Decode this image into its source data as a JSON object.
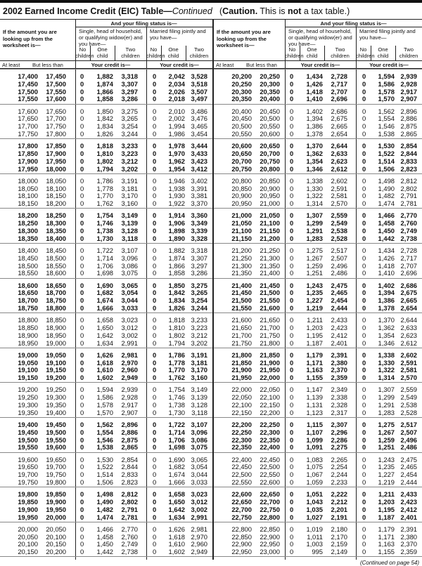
{
  "title": {
    "main": "2002 Earned Income Credit (EIC) Table—",
    "cont": "Continued",
    "caution_bold": "Caution.",
    "caution_mid": " This is ",
    "caution_not": "not",
    "caution_end": " a tax table.)",
    "caution_open": "("
  },
  "header": {
    "filing_status": "And your filing status is—",
    "lookup": [
      "If the amount you are",
      "looking up from the",
      "worksheet is—"
    ],
    "single": [
      "Single, head of household,",
      "or qualifying widow(er) and",
      "you have—"
    ],
    "married": [
      "Married filing jointly and",
      "you have—"
    ],
    "no_children": [
      "No",
      "children"
    ],
    "one_child": [
      "One",
      "child"
    ],
    "two_children": [
      "Two",
      "children"
    ],
    "at_least": "At least",
    "but_less_than": "But less than",
    "your_credit": "Your credit is—"
  },
  "left": {
    "rows": [
      [
        "17,400",
        "17,450",
        "0",
        "1,882",
        "3,318",
        "0",
        "2,042",
        "3,528"
      ],
      [
        "17,450",
        "17,500",
        "0",
        "1,874",
        "3,307",
        "0",
        "2,034",
        "3,518"
      ],
      [
        "17,500",
        "17,550",
        "0",
        "1,866",
        "3,297",
        "0",
        "2,026",
        "3,507"
      ],
      [
        "17,550",
        "17,600",
        "0",
        "1,858",
        "3,286",
        "0",
        "2,018",
        "3,497"
      ],
      [
        "17,600",
        "17,650",
        "0",
        "1,850",
        "3,275",
        "0",
        "2,010",
        "3,486"
      ],
      [
        "17,650",
        "17,700",
        "0",
        "1,842",
        "3,265",
        "0",
        "2,002",
        "3,476"
      ],
      [
        "17,700",
        "17,750",
        "0",
        "1,834",
        "3,254",
        "0",
        "1,994",
        "3,465"
      ],
      [
        "17,750",
        "17,800",
        "0",
        "1,826",
        "3,244",
        "0",
        "1,986",
        "3,454"
      ],
      [
        "17,800",
        "17,850",
        "0",
        "1,818",
        "3,233",
        "0",
        "1,978",
        "3,444"
      ],
      [
        "17,850",
        "17,900",
        "0",
        "1,810",
        "3,223",
        "0",
        "1,970",
        "3,433"
      ],
      [
        "17,900",
        "17,950",
        "0",
        "1,802",
        "3,212",
        "0",
        "1,962",
        "3,423"
      ],
      [
        "17,950",
        "18,000",
        "0",
        "1,794",
        "3,202",
        "0",
        "1,954",
        "3,412"
      ],
      [
        "18,000",
        "18,050",
        "0",
        "1,786",
        "3,191",
        "0",
        "1,946",
        "3,402"
      ],
      [
        "18,050",
        "18,100",
        "0",
        "1,778",
        "3,181",
        "0",
        "1,938",
        "3,391"
      ],
      [
        "18,100",
        "18,150",
        "0",
        "1,770",
        "3,170",
        "0",
        "1,930",
        "3,381"
      ],
      [
        "18,150",
        "18,200",
        "0",
        "1,762",
        "3,160",
        "0",
        "1,922",
        "3,370"
      ],
      [
        "18,200",
        "18,250",
        "0",
        "1,754",
        "3,149",
        "0",
        "1,914",
        "3,360"
      ],
      [
        "18,250",
        "18,300",
        "0",
        "1,746",
        "3,139",
        "0",
        "1,906",
        "3,349"
      ],
      [
        "18,300",
        "18,350",
        "0",
        "1,738",
        "3,128",
        "0",
        "1,898",
        "3,339"
      ],
      [
        "18,350",
        "18,400",
        "0",
        "1,730",
        "3,118",
        "0",
        "1,890",
        "3,328"
      ],
      [
        "18,400",
        "18,450",
        "0",
        "1,722",
        "3,107",
        "0",
        "1,882",
        "3,318"
      ],
      [
        "18,450",
        "18,500",
        "0",
        "1,714",
        "3,096",
        "0",
        "1,874",
        "3,307"
      ],
      [
        "18,500",
        "18,550",
        "0",
        "1,706",
        "3,086",
        "0",
        "1,866",
        "3,297"
      ],
      [
        "18,550",
        "18,600",
        "0",
        "1,698",
        "3,075",
        "0",
        "1,858",
        "3,286"
      ],
      [
        "18,600",
        "18,650",
        "0",
        "1,690",
        "3,065",
        "0",
        "1,850",
        "3,275"
      ],
      [
        "18,650",
        "18,700",
        "0",
        "1,682",
        "3,054",
        "0",
        "1,842",
        "3,265"
      ],
      [
        "18,700",
        "18,750",
        "0",
        "1,674",
        "3,044",
        "0",
        "1,834",
        "3,254"
      ],
      [
        "18,750",
        "18,800",
        "0",
        "1,666",
        "3,033",
        "0",
        "1,826",
        "3,244"
      ],
      [
        "18,800",
        "18,850",
        "0",
        "1,658",
        "3,023",
        "0",
        "1,818",
        "3,233"
      ],
      [
        "18,850",
        "18,900",
        "0",
        "1,650",
        "3,012",
        "0",
        "1,810",
        "3,223"
      ],
      [
        "18,900",
        "18,950",
        "0",
        "1,642",
        "3,002",
        "0",
        "1,802",
        "3,212"
      ],
      [
        "18,950",
        "19,000",
        "0",
        "1,634",
        "2,991",
        "0",
        "1,794",
        "3,202"
      ],
      [
        "19,000",
        "19,050",
        "0",
        "1,626",
        "2,981",
        "0",
        "1,786",
        "3,191"
      ],
      [
        "19,050",
        "19,100",
        "0",
        "1,618",
        "2,970",
        "0",
        "1,778",
        "3,181"
      ],
      [
        "19,100",
        "19,150",
        "0",
        "1,610",
        "2,960",
        "0",
        "1,770",
        "3,170"
      ],
      [
        "19,150",
        "19,200",
        "0",
        "1,602",
        "2,949",
        "0",
        "1,762",
        "3,160"
      ],
      [
        "19,200",
        "19,250",
        "0",
        "1,594",
        "2,939",
        "0",
        "1,754",
        "3,149"
      ],
      [
        "19,250",
        "19,300",
        "0",
        "1,586",
        "2,928",
        "0",
        "1,746",
        "3,139"
      ],
      [
        "19,300",
        "19,350",
        "0",
        "1,578",
        "2,917",
        "0",
        "1,738",
        "3,128"
      ],
      [
        "19,350",
        "19,400",
        "0",
        "1,570",
        "2,907",
        "0",
        "1,730",
        "3,118"
      ],
      [
        "19,400",
        "19,450",
        "0",
        "1,562",
        "2,896",
        "0",
        "1,722",
        "3,107"
      ],
      [
        "19,450",
        "19,500",
        "0",
        "1,554",
        "2,886",
        "0",
        "1,714",
        "3,096"
      ],
      [
        "19,500",
        "19,550",
        "0",
        "1,546",
        "2,875",
        "0",
        "1,706",
        "3,086"
      ],
      [
        "19,550",
        "19,600",
        "0",
        "1,538",
        "2,865",
        "0",
        "1,698",
        "3,075"
      ],
      [
        "19,600",
        "19,650",
        "0",
        "1,530",
        "2,854",
        "0",
        "1,690",
        "3,065"
      ],
      [
        "19,650",
        "19,700",
        "0",
        "1,522",
        "2,844",
        "0",
        "1,682",
        "3,054"
      ],
      [
        "19,700",
        "19,750",
        "0",
        "1,514",
        "2,833",
        "0",
        "1,674",
        "3,044"
      ],
      [
        "19,750",
        "19,800",
        "0",
        "1,506",
        "2,823",
        "0",
        "1,666",
        "3,033"
      ],
      [
        "19,800",
        "19,850",
        "0",
        "1,498",
        "2,812",
        "0",
        "1,658",
        "3,023"
      ],
      [
        "19,850",
        "19,900",
        "0",
        "1,490",
        "2,802",
        "0",
        "1,650",
        "3,012"
      ],
      [
        "19,900",
        "19,950",
        "0",
        "1,482",
        "2,791",
        "0",
        "1,642",
        "3,002"
      ],
      [
        "19,950",
        "20,000",
        "0",
        "1,474",
        "2,781",
        "0",
        "1,634",
        "2,991"
      ],
      [
        "20,000",
        "20,050",
        "0",
        "1,466",
        "2,770",
        "0",
        "1,626",
        "2,981"
      ],
      [
        "20,050",
        "20,100",
        "0",
        "1,458",
        "2,760",
        "0",
        "1,618",
        "2,970"
      ],
      [
        "20,100",
        "20,150",
        "0",
        "1,450",
        "2,749",
        "0",
        "1,610",
        "2,960"
      ],
      [
        "20,150",
        "20,200",
        "0",
        "1,442",
        "2,738",
        "0",
        "1,602",
        "2,949"
      ]
    ]
  },
  "right": {
    "rows": [
      [
        "20,200",
        "20,250",
        "0",
        "1,434",
        "2,728",
        "0",
        "1,594",
        "2,939"
      ],
      [
        "20,250",
        "20,300",
        "0",
        "1,426",
        "2,717",
        "0",
        "1,586",
        "2,928"
      ],
      [
        "20,300",
        "20,350",
        "0",
        "1,418",
        "2,707",
        "0",
        "1,578",
        "2,917"
      ],
      [
        "20,350",
        "20,400",
        "0",
        "1,410",
        "2,696",
        "0",
        "1,570",
        "2,907"
      ],
      [
        "20,400",
        "20,450",
        "0",
        "1,402",
        "2,686",
        "0",
        "1,562",
        "2,896"
      ],
      [
        "20,450",
        "20,500",
        "0",
        "1,394",
        "2,675",
        "0",
        "1,554",
        "2,886"
      ],
      [
        "20,500",
        "20,550",
        "0",
        "1,386",
        "2,665",
        "0",
        "1,546",
        "2,875"
      ],
      [
        "20,550",
        "20,600",
        "0",
        "1,378",
        "2,654",
        "0",
        "1,538",
        "2,865"
      ],
      [
        "20,600",
        "20,650",
        "0",
        "1,370",
        "2,644",
        "0",
        "1,530",
        "2,854"
      ],
      [
        "20,650",
        "20,700",
        "0",
        "1,362",
        "2,633",
        "0",
        "1,522",
        "2,844"
      ],
      [
        "20,700",
        "20,750",
        "0",
        "1,354",
        "2,623",
        "0",
        "1,514",
        "2,833"
      ],
      [
        "20,750",
        "20,800",
        "0",
        "1,346",
        "2,612",
        "0",
        "1,506",
        "2,823"
      ],
      [
        "20,800",
        "20,850",
        "0",
        "1,338",
        "2,602",
        "0",
        "1,498",
        "2,812"
      ],
      [
        "20,850",
        "20,900",
        "0",
        "1,330",
        "2,591",
        "0",
        "1,490",
        "2,802"
      ],
      [
        "20,900",
        "20,950",
        "0",
        "1,322",
        "2,581",
        "0",
        "1,482",
        "2,791"
      ],
      [
        "20,950",
        "21,000",
        "0",
        "1,314",
        "2,570",
        "0",
        "1,474",
        "2,781"
      ],
      [
        "21,000",
        "21,050",
        "0",
        "1,307",
        "2,559",
        "0",
        "1,466",
        "2,770"
      ],
      [
        "21,050",
        "21,100",
        "0",
        "1,299",
        "2,549",
        "0",
        "1,458",
        "2,760"
      ],
      [
        "21,100",
        "21,150",
        "0",
        "1,291",
        "2,538",
        "0",
        "1,450",
        "2,749"
      ],
      [
        "21,150",
        "21,200",
        "0",
        "1,283",
        "2,528",
        "0",
        "1,442",
        "2,738"
      ],
      [
        "21,200",
        "21,250",
        "0",
        "1,275",
        "2,517",
        "0",
        "1,434",
        "2,728"
      ],
      [
        "21,250",
        "21,300",
        "0",
        "1,267",
        "2,507",
        "0",
        "1,426",
        "2,717"
      ],
      [
        "21,300",
        "21,350",
        "0",
        "1,259",
        "2,496",
        "0",
        "1,418",
        "2,707"
      ],
      [
        "21,350",
        "21,400",
        "0",
        "1,251",
        "2,486",
        "0",
        "1,410",
        "2,696"
      ],
      [
        "21,400",
        "21,450",
        "0",
        "1,243",
        "2,475",
        "0",
        "1,402",
        "2,686"
      ],
      [
        "21,450",
        "21,500",
        "0",
        "1,235",
        "2,465",
        "0",
        "1,394",
        "2,675"
      ],
      [
        "21,500",
        "21,550",
        "0",
        "1,227",
        "2,454",
        "0",
        "1,386",
        "2,665"
      ],
      [
        "21,550",
        "21,600",
        "0",
        "1,219",
        "2,444",
        "0",
        "1,378",
        "2,654"
      ],
      [
        "21,600",
        "21,650",
        "0",
        "1,211",
        "2,433",
        "0",
        "1,370",
        "2,644"
      ],
      [
        "21,650",
        "21,700",
        "0",
        "1,203",
        "2,423",
        "0",
        "1,362",
        "2,633"
      ],
      [
        "21,700",
        "21,750",
        "0",
        "1,195",
        "2,412",
        "0",
        "1,354",
        "2,623"
      ],
      [
        "21,750",
        "21,800",
        "0",
        "1,187",
        "2,401",
        "0",
        "1,346",
        "2,612"
      ],
      [
        "21,800",
        "21,850",
        "0",
        "1,179",
        "2,391",
        "0",
        "1,338",
        "2,602"
      ],
      [
        "21,850",
        "21,900",
        "0",
        "1,171",
        "2,380",
        "0",
        "1,330",
        "2,591"
      ],
      [
        "21,900",
        "21,950",
        "0",
        "1,163",
        "2,370",
        "0",
        "1,322",
        "2,581"
      ],
      [
        "21,950",
        "22,000",
        "0",
        "1,155",
        "2,359",
        "0",
        "1,314",
        "2,570"
      ],
      [
        "22,000",
        "22,050",
        "0",
        "1,147",
        "2,349",
        "0",
        "1,307",
        "2,559"
      ],
      [
        "22,050",
        "22,100",
        "0",
        "1,139",
        "2,338",
        "0",
        "1,299",
        "2,549"
      ],
      [
        "22,100",
        "22,150",
        "0",
        "1,131",
        "2,328",
        "0",
        "1,291",
        "2,538"
      ],
      [
        "22,150",
        "22,200",
        "0",
        "1,123",
        "2,317",
        "0",
        "1,283",
        "2,528"
      ],
      [
        "22,200",
        "22,250",
        "0",
        "1,115",
        "2,307",
        "0",
        "1,275",
        "2,517"
      ],
      [
        "22,250",
        "22,300",
        "0",
        "1,107",
        "2,296",
        "0",
        "1,267",
        "2,507"
      ],
      [
        "22,300",
        "22,350",
        "0",
        "1,099",
        "2,286",
        "0",
        "1,259",
        "2,496"
      ],
      [
        "22,350",
        "22,400",
        "0",
        "1,091",
        "2,275",
        "0",
        "1,251",
        "2,486"
      ],
      [
        "22,400",
        "22,450",
        "0",
        "1,083",
        "2,265",
        "0",
        "1,243",
        "2,475"
      ],
      [
        "22,450",
        "22,500",
        "0",
        "1,075",
        "2,254",
        "0",
        "1,235",
        "2,465"
      ],
      [
        "22,500",
        "22,550",
        "0",
        "1,067",
        "2,244",
        "0",
        "1,227",
        "2,454"
      ],
      [
        "22,550",
        "22,600",
        "0",
        "1,059",
        "2,233",
        "0",
        "1,219",
        "2,444"
      ],
      [
        "22,600",
        "22,650",
        "0",
        "1,051",
        "2,222",
        "0",
        "1,211",
        "2,433"
      ],
      [
        "22,650",
        "22,700",
        "0",
        "1,043",
        "2,212",
        "0",
        "1,203",
        "2,423"
      ],
      [
        "22,700",
        "22,750",
        "0",
        "1,035",
        "2,201",
        "0",
        "1,195",
        "2,412"
      ],
      [
        "22,750",
        "22,800",
        "0",
        "1,027",
        "2,191",
        "0",
        "1,187",
        "2,401"
      ],
      [
        "22,800",
        "22,850",
        "0",
        "1,019",
        "2,180",
        "0",
        "1,179",
        "2,391"
      ],
      [
        "22,850",
        "22,900",
        "0",
        "1,011",
        "2,170",
        "0",
        "1,171",
        "2,380"
      ],
      [
        "22,900",
        "22,950",
        "0",
        "1,003",
        "2,159",
        "0",
        "1,163",
        "2,370"
      ],
      [
        "22,950",
        "23,000",
        "0",
        "995",
        "2,149",
        "0",
        "1,155",
        "2,359"
      ]
    ]
  },
  "footer": "(Continued on page 54)"
}
